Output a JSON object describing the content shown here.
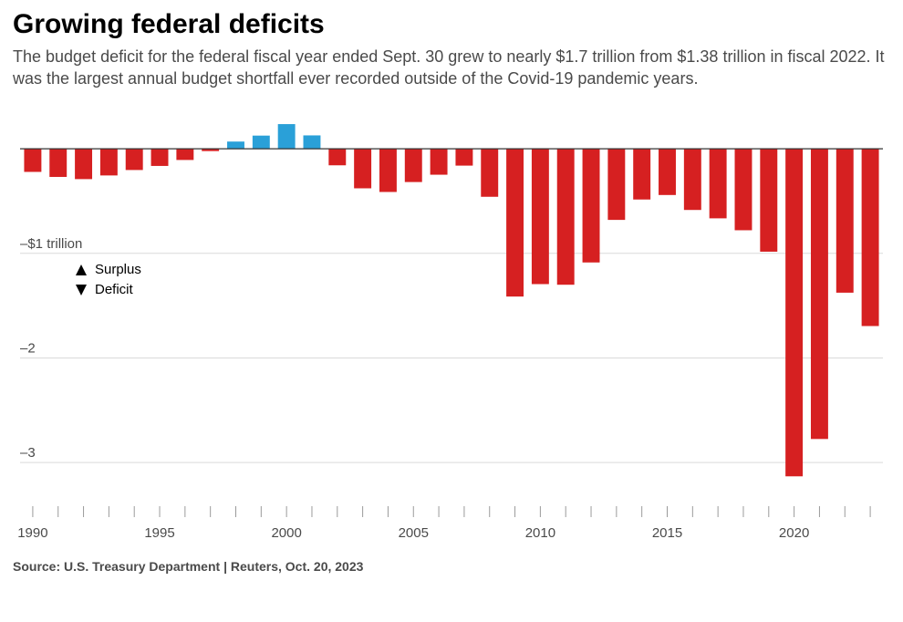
{
  "title": "Growing federal deficits",
  "subtitle": "The budget deficit for the federal fiscal year ended Sept. 30 grew to nearly $1.7 trillion from $1.38 trillion in fiscal 2022. It was the largest annual budget shortfall ever recorded outside of the Covid-19 pandemic years.",
  "source": "Source: U.S. Treasury Department | Reuters, Oct. 20, 2023",
  "chart": {
    "type": "bar",
    "years": [
      1990,
      1991,
      1992,
      1993,
      1994,
      1995,
      1996,
      1997,
      1998,
      1999,
      2000,
      2001,
      2002,
      2003,
      2004,
      2005,
      2006,
      2007,
      2008,
      2009,
      2010,
      2011,
      2012,
      2013,
      2014,
      2015,
      2016,
      2017,
      2018,
      2019,
      2020,
      2021,
      2022,
      2023
    ],
    "values": [
      -0.221,
      -0.269,
      -0.29,
      -0.255,
      -0.203,
      -0.164,
      -0.107,
      -0.022,
      0.069,
      0.126,
      0.236,
      0.128,
      -0.158,
      -0.378,
      -0.413,
      -0.318,
      -0.248,
      -0.161,
      -0.459,
      -1.413,
      -1.294,
      -1.3,
      -1.087,
      -0.68,
      -0.485,
      -0.442,
      -0.585,
      -0.665,
      -0.779,
      -0.984,
      -3.132,
      -2.775,
      -1.376,
      -1.695
    ],
    "positive_color": "#2aa0d8",
    "negative_color": "#d62021",
    "background_color": "#ffffff",
    "zero_line_color": "#333333",
    "grid_color": "#dadada",
    "tick_color": "#9a9a9a",
    "text_color": "#4a4a4a",
    "ymin": -3.4,
    "ymax": 0.35,
    "ytick_labels": {
      "-1": "–$1 trillion",
      "-2": "–2",
      "-3": "–3"
    },
    "xtick_years": [
      1990,
      1995,
      2000,
      2005,
      2010,
      2015,
      2020
    ],
    "bar_width_ratio": 0.68,
    "legend": {
      "surplus": "Surplus",
      "deficit": "Deficit"
    },
    "title_fontsize": 30,
    "subtitle_fontsize": 18,
    "axis_fontsize": 15
  }
}
